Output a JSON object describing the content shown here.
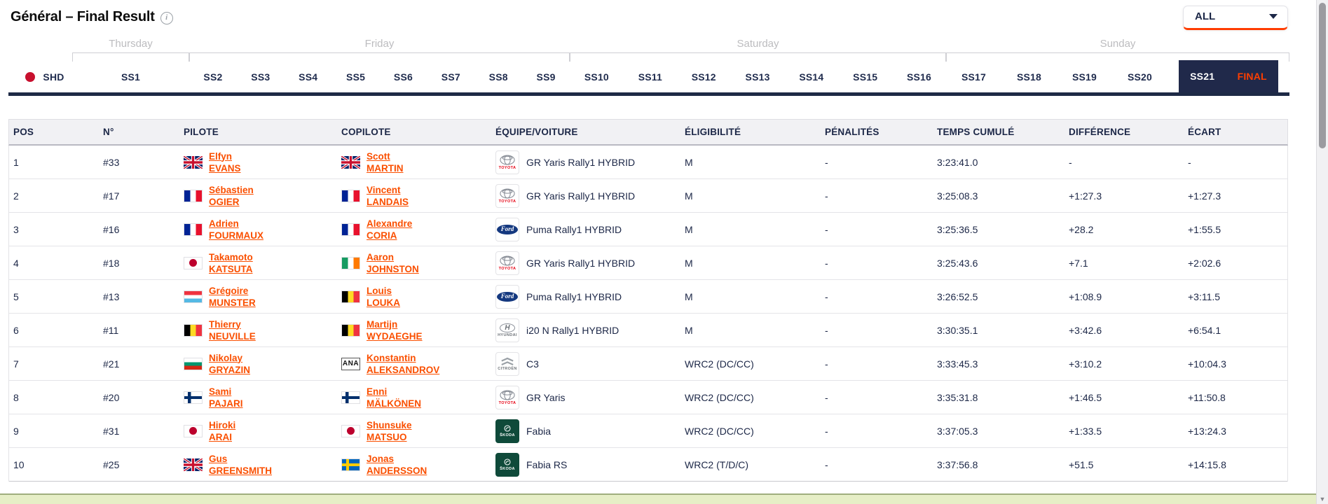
{
  "header": {
    "title": "Général – Final Result",
    "filter": {
      "value": "ALL"
    }
  },
  "colors": {
    "accent_orange": "#ff3e00",
    "link_orange": "#fa4f00",
    "navy": "#1c2747",
    "selected_tab_bg": "#20294a",
    "live_dot_red": "#c8102e",
    "bottom_strip_green": "#e6eec6"
  },
  "stage_nav": {
    "pre_stage": "SHD",
    "days": [
      {
        "label": "Thursday",
        "stages": [
          {
            "label": "SS1"
          }
        ]
      },
      {
        "label": "Friday",
        "stages": [
          {
            "label": "SS2"
          },
          {
            "label": "SS3"
          },
          {
            "label": "SS4"
          },
          {
            "label": "SS5"
          },
          {
            "label": "SS6"
          },
          {
            "label": "SS7"
          },
          {
            "label": "SS8"
          },
          {
            "label": "SS9"
          }
        ]
      },
      {
        "label": "Saturday",
        "stages": [
          {
            "label": "SS10"
          },
          {
            "label": "SS11"
          },
          {
            "label": "SS12"
          },
          {
            "label": "SS13"
          },
          {
            "label": "SS14"
          },
          {
            "label": "SS15"
          },
          {
            "label": "SS16"
          }
        ]
      },
      {
        "label": "Sunday",
        "stages": [
          {
            "label": "SS17"
          },
          {
            "label": "SS18"
          },
          {
            "label": "SS19"
          },
          {
            "label": "SS20"
          },
          {
            "label": "SS21",
            "highlight": "selected"
          },
          {
            "label": "FINAL",
            "highlight": "final"
          }
        ]
      }
    ]
  },
  "logo_labels": {
    "toyota": "TOYOTA",
    "ford": "Ford",
    "hyundai": "HYUNDAI",
    "citroen": "CITROËN",
    "skoda": "ŠKODA",
    "ana": "ANA"
  },
  "table": {
    "columns": [
      "POS",
      "N°",
      "PILOTE",
      "COPILOTE",
      "ÉQUIPE/VOITURE",
      "ÉLIGIBILITÉ",
      "PÉNALITÉS",
      "TEMPS CUMULÉ",
      "DIFFÉRENCE",
      "ÉCART"
    ],
    "rows": [
      {
        "pos": "1",
        "num": "#33",
        "pilot": {
          "flag": "gb",
          "first": "Elfyn",
          "last": "EVANS"
        },
        "copilot": {
          "flag": "gb",
          "first": "Scott",
          "last": "MARTIN"
        },
        "car": {
          "logo": "toyota",
          "name": "GR Yaris Rally1 HYBRID"
        },
        "eligibility": "M",
        "penalties": "-",
        "cumulative": "3:23:41.0",
        "difference": "-",
        "gap": "-"
      },
      {
        "pos": "2",
        "num": "#17",
        "pilot": {
          "flag": "fr",
          "first": "Sébastien",
          "last": "OGIER"
        },
        "copilot": {
          "flag": "fr",
          "first": "Vincent",
          "last": "LANDAIS"
        },
        "car": {
          "logo": "toyota",
          "name": "GR Yaris Rally1 HYBRID"
        },
        "eligibility": "M",
        "penalties": "-",
        "cumulative": "3:25:08.3",
        "difference": "+1:27.3",
        "gap": "+1:27.3"
      },
      {
        "pos": "3",
        "num": "#16",
        "pilot": {
          "flag": "fr",
          "first": "Adrien",
          "last": "FOURMAUX"
        },
        "copilot": {
          "flag": "fr",
          "first": "Alexandre",
          "last": "CORIA"
        },
        "car": {
          "logo": "ford",
          "name": "Puma Rally1 HYBRID"
        },
        "eligibility": "M",
        "penalties": "-",
        "cumulative": "3:25:36.5",
        "difference": "+28.2",
        "gap": "+1:55.5"
      },
      {
        "pos": "4",
        "num": "#18",
        "pilot": {
          "flag": "jp",
          "first": "Takamoto",
          "last": "KATSUTA"
        },
        "copilot": {
          "flag": "ie",
          "first": "Aaron",
          "last": "JOHNSTON"
        },
        "car": {
          "logo": "toyota",
          "name": "GR Yaris Rally1 HYBRID"
        },
        "eligibility": "M",
        "penalties": "-",
        "cumulative": "3:25:43.6",
        "difference": "+7.1",
        "gap": "+2:02.6"
      },
      {
        "pos": "5",
        "num": "#13",
        "pilot": {
          "flag": "lu",
          "first": "Grégoire",
          "last": "MUNSTER"
        },
        "copilot": {
          "flag": "be",
          "first": "Louis",
          "last": "LOUKA"
        },
        "car": {
          "logo": "ford",
          "name": "Puma Rally1 HYBRID"
        },
        "eligibility": "M",
        "penalties": "-",
        "cumulative": "3:26:52.5",
        "difference": "+1:08.9",
        "gap": "+3:11.5"
      },
      {
        "pos": "6",
        "num": "#11",
        "pilot": {
          "flag": "be",
          "first": "Thierry",
          "last": "NEUVILLE"
        },
        "copilot": {
          "flag": "be",
          "first": "Martijn",
          "last": "WYDAEGHE"
        },
        "car": {
          "logo": "hyundai",
          "name": "i20 N Rally1 HYBRID"
        },
        "eligibility": "M",
        "penalties": "-",
        "cumulative": "3:30:35.1",
        "difference": "+3:42.6",
        "gap": "+6:54.1"
      },
      {
        "pos": "7",
        "num": "#21",
        "pilot": {
          "flag": "bg",
          "first": "Nikolay",
          "last": "GRYAZIN"
        },
        "copilot": {
          "flag": "ana",
          "first": "Konstantin",
          "last": "ALEKSANDROV"
        },
        "car": {
          "logo": "citroen",
          "name": "C3"
        },
        "eligibility": "WRC2 (DC/CC)",
        "penalties": "-",
        "cumulative": "3:33:45.3",
        "difference": "+3:10.2",
        "gap": "+10:04.3"
      },
      {
        "pos": "8",
        "num": "#20",
        "pilot": {
          "flag": "fi",
          "first": "Sami",
          "last": "PAJARI"
        },
        "copilot": {
          "flag": "fi",
          "first": "Enni",
          "last": "MÄLKÖNEN"
        },
        "car": {
          "logo": "toyota",
          "name": "GR Yaris"
        },
        "eligibility": "WRC2 (DC/CC)",
        "penalties": "-",
        "cumulative": "3:35:31.8",
        "difference": "+1:46.5",
        "gap": "+11:50.8"
      },
      {
        "pos": "9",
        "num": "#31",
        "pilot": {
          "flag": "jp",
          "first": "Hiroki",
          "last": "ARAI"
        },
        "copilot": {
          "flag": "jp",
          "first": "Shunsuke",
          "last": "MATSUO"
        },
        "car": {
          "logo": "skoda",
          "name": "Fabia"
        },
        "eligibility": "WRC2 (DC/CC)",
        "penalties": "-",
        "cumulative": "3:37:05.3",
        "difference": "+1:33.5",
        "gap": "+13:24.3"
      },
      {
        "pos": "10",
        "num": "#25",
        "pilot": {
          "flag": "gb",
          "first": "Gus",
          "last": "GREENSMITH"
        },
        "copilot": {
          "flag": "se",
          "first": "Jonas",
          "last": "ANDERSSON"
        },
        "car": {
          "logo": "skoda",
          "name": "Fabia RS"
        },
        "eligibility": "WRC2 (T/D/C)",
        "penalties": "-",
        "cumulative": "3:37:56.8",
        "difference": "+51.5",
        "gap": "+14:15.8"
      }
    ]
  }
}
